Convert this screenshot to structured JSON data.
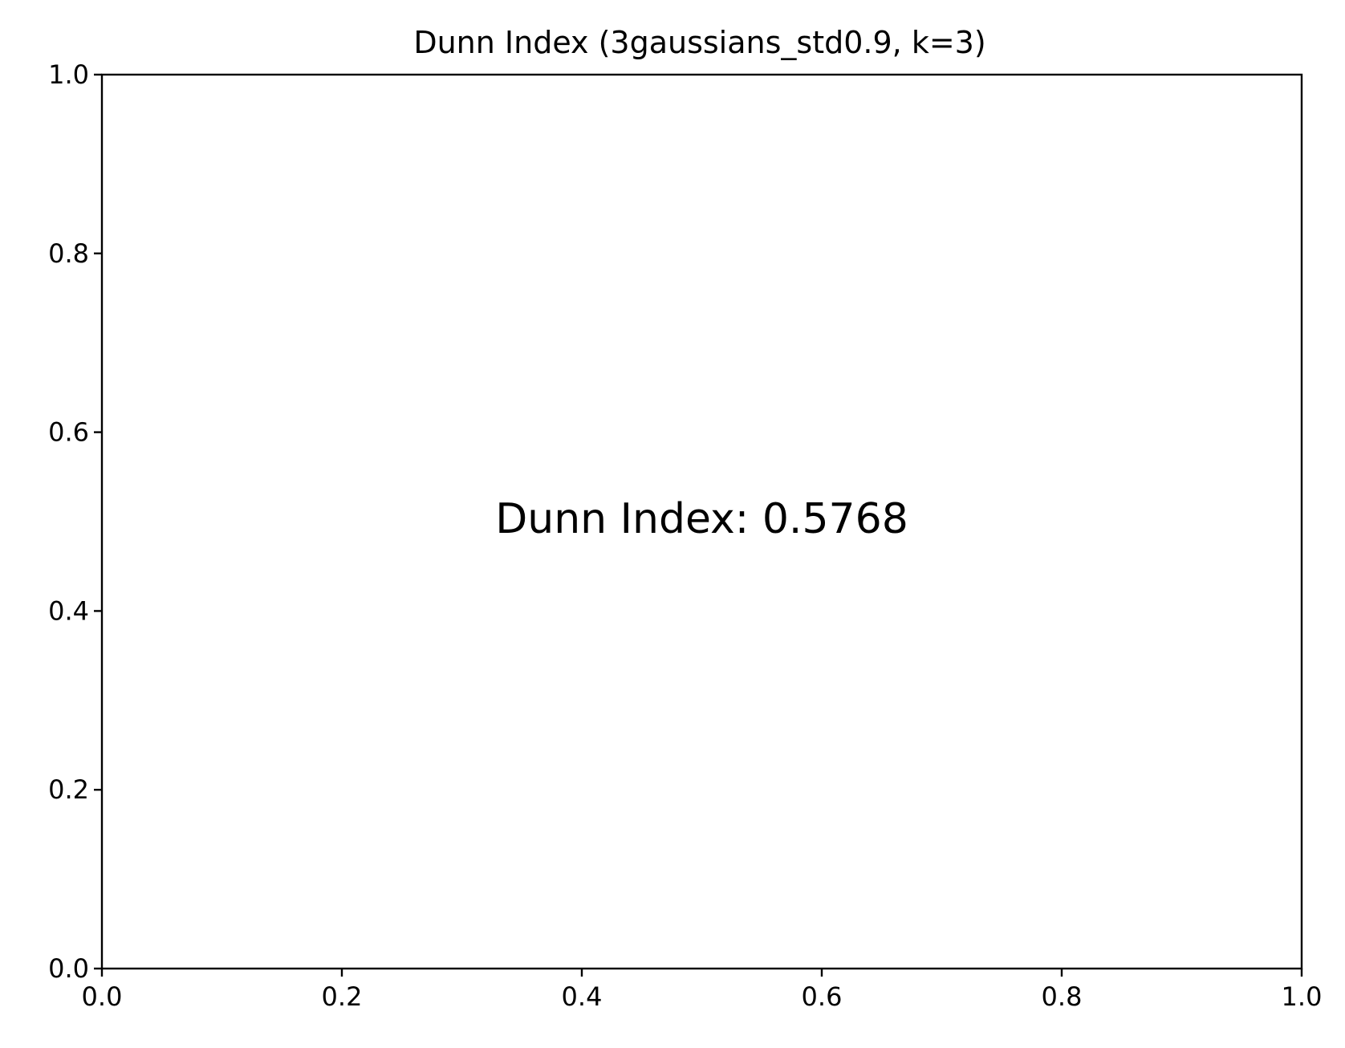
{
  "chart_data": {
    "type": "table",
    "title": "Dunn Index (3gaussians_std0.9, k=3)",
    "xlabel": "",
    "ylabel": "",
    "xlim": [
      0.0,
      1.0
    ],
    "ylim": [
      0.0,
      1.0
    ],
    "x_ticks": [
      "0.0",
      "0.2",
      "0.4",
      "0.6",
      "0.8",
      "1.0"
    ],
    "y_ticks": [
      "0.0",
      "0.2",
      "0.4",
      "0.6",
      "0.8",
      "1.0"
    ],
    "grid": false,
    "annotations": [
      {
        "text": "Dunn Index: 0.5768",
        "x": 0.5,
        "y": 0.5
      }
    ],
    "series": []
  }
}
